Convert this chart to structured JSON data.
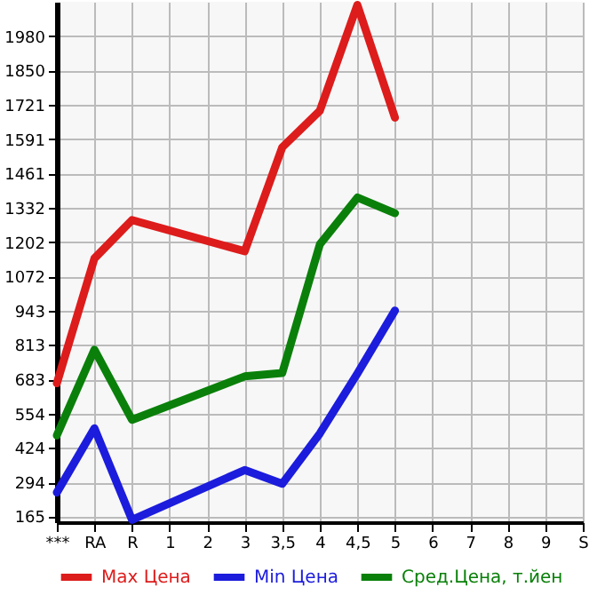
{
  "chart_data": {
    "type": "line",
    "categories": [
      "***",
      "RA",
      "R",
      "1",
      "2",
      "3",
      "3,5",
      "4",
      "4,5",
      "5",
      "6",
      "7",
      "8",
      "9",
      "S"
    ],
    "series": [
      {
        "name": "Max Цена",
        "color": "#dd1c1c",
        "values": [
          668,
          1140,
          1285,
          null,
          null,
          1167,
          1560,
          1698,
          2098,
          1672,
          null,
          null,
          null,
          null,
          null
        ]
      },
      {
        "name": "Min Цена",
        "color": "#1c1cdd",
        "values": [
          255,
          498,
          152,
          null,
          null,
          340,
          288,
          478,
          705,
          943,
          null,
          null,
          null,
          null,
          null
        ]
      },
      {
        "name": "Сред.Цена, т.йен",
        "color": "#0a800a",
        "values": [
          471,
          795,
          530,
          null,
          null,
          694,
          707,
          1193,
          1370,
          1311,
          null,
          null,
          null,
          null,
          null
        ]
      }
    ],
    "ylim": [
      143,
      2110
    ],
    "yticks": [
      165,
      294,
      424,
      554,
      683,
      813,
      943,
      1072,
      1202,
      1332,
      1461,
      1591,
      1721,
      1850,
      1980
    ],
    "grid": true,
    "legend": "bottom",
    "marker": "none",
    "line_style": "solid"
  }
}
